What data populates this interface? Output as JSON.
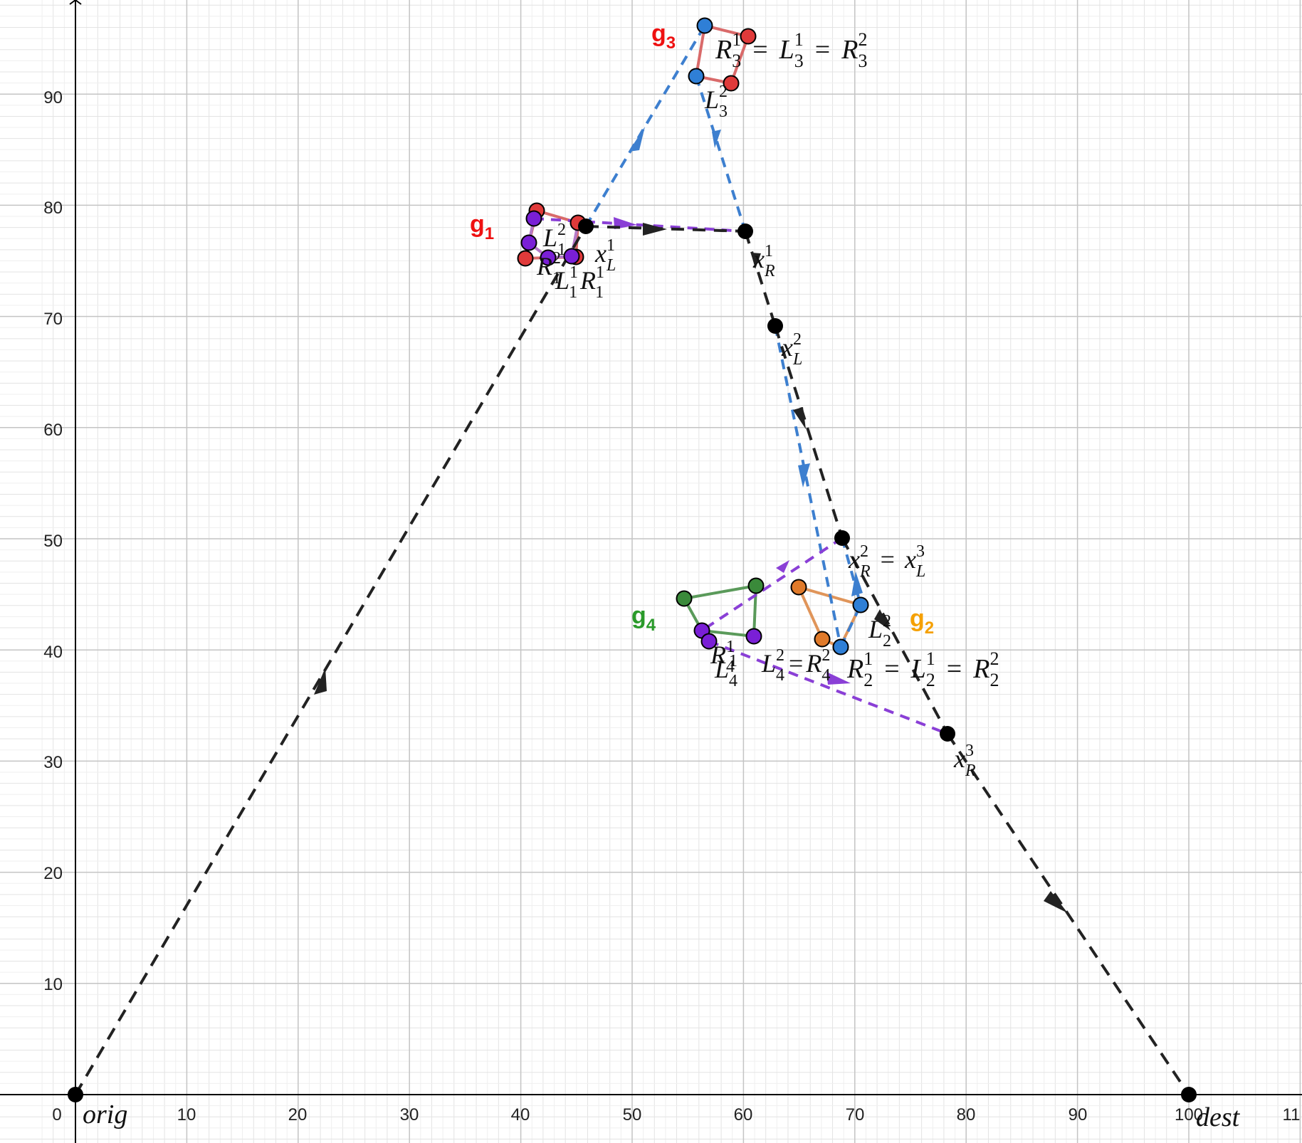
{
  "axes": {
    "x_ticks": [
      "0",
      "10",
      "20",
      "30",
      "40",
      "50",
      "60",
      "70",
      "80",
      "90",
      "100",
      "11"
    ],
    "y_ticks": [
      "10",
      "20",
      "30",
      "40",
      "50",
      "60",
      "70",
      "80",
      "90"
    ]
  },
  "colors": {
    "black_path": "#222222",
    "blue_path": "#3d7fcf",
    "purple_path": "#8a3fd6",
    "red_poly": "#d96a6a",
    "orange_poly": "#e0955a",
    "green_poly": "#5a9a5a",
    "red_point": "#e03a3a",
    "blue_point": "#2f7fd6",
    "purple_point": "#7a1fd6",
    "orange_point": "#e07a2a",
    "green_point": "#3a8a3a",
    "g1": "#ee1111",
    "g2": "#f5a000",
    "g3": "#ee1111",
    "g4": "#2a9a2a"
  },
  "labels": {
    "orig": "orig",
    "dest": "dest",
    "g1": {
      "main": "g",
      "sub": "1"
    },
    "g2": {
      "main": "g",
      "sub": "2"
    },
    "g3": {
      "main": "g",
      "sub": "3"
    },
    "g4": {
      "main": "g",
      "sub": "4"
    },
    "xL1": {
      "main": "x",
      "sup": "1",
      "sub": "L"
    },
    "xR1": {
      "main": "x",
      "sup": "1",
      "sub": "R"
    },
    "xL2": {
      "main": "x",
      "sup": "2",
      "sub": "L"
    },
    "xR2eq": {
      "a": "x",
      "a_sup": "2",
      "a_sub": "R",
      "eq": "=",
      "b": "x",
      "b_sup": "3",
      "b_sub": "L"
    },
    "xR3": {
      "main": "x",
      "sup": "3",
      "sub": "R"
    },
    "R3eq": {
      "a": "R",
      "a_sup": "1",
      "a_sub": "3",
      "eq1": "=",
      "b": "L",
      "b_sup": "1",
      "b_sub": "3",
      "eq2": "=",
      "c": "R",
      "c_sup": "2",
      "c_sub": "3"
    },
    "L3_2": {
      "main": "L",
      "sup": "2",
      "sub": "3"
    },
    "L1_2": {
      "main": "L",
      "sup": "2",
      "sub": "1"
    },
    "R1_2": {
      "main": "R",
      "sup": "2",
      "sub": "1"
    },
    "L1_1": {
      "main": "L",
      "sup": "1",
      "sub": "1"
    },
    "R1_1": {
      "main": "R",
      "sup": "1",
      "sub": "1"
    },
    "L2_2": {
      "main": "L",
      "sup": "2",
      "sub": "2"
    },
    "R2eq": {
      "a": "R",
      "a_sup": "1",
      "a_sub": "2",
      "eq1": "=",
      "b": "L",
      "b_sup": "1",
      "b_sub": "2",
      "eq2": "=",
      "c": "R",
      "c_sup": "2",
      "c_sub": "2"
    },
    "R4_1": {
      "main": "R",
      "sup": "1",
      "sub": "4"
    },
    "L4_1": {
      "main": "L",
      "sup": "1",
      "sub": "4"
    },
    "L4eq": {
      "a": "L",
      "a_sup": "2",
      "a_sub": "4",
      "eq": "=",
      "b": "R",
      "b_sup": "2",
      "b_sub": "4"
    }
  }
}
